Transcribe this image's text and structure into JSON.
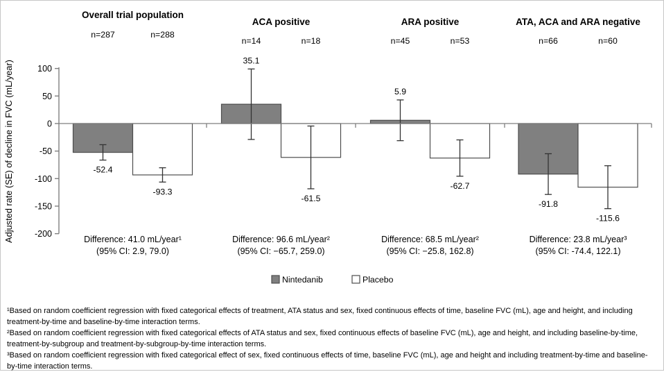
{
  "chart_data": {
    "type": "bar",
    "title": "",
    "xlabel": "",
    "ylabel": "Adjusted rate (SE) of decline in FVC (mL/year)",
    "ylim": [
      -200,
      100
    ],
    "yticks": [
      100,
      50,
      0,
      -50,
      -100,
      -150,
      -200
    ],
    "grid": false,
    "legend_position": "bottom",
    "categories": [
      "Overall trial population",
      "ACA positive",
      "ARA positive",
      "ATA, ACA and ARA negative"
    ],
    "group_n": [
      [
        "n=287",
        "n=288"
      ],
      [
        "n=14",
        "n=18"
      ],
      [
        "n=45",
        "n=53"
      ],
      [
        "n=66",
        "n=60"
      ]
    ],
    "series": [
      {
        "name": "Nintedanib",
        "color": "#808080",
        "values": [
          -52.4,
          35.1,
          5.9,
          -91.8
        ],
        "se": [
          14,
          64,
          37,
          37
        ]
      },
      {
        "name": "Placebo",
        "color": "#ffffff",
        "values": [
          -93.3,
          -61.5,
          -62.7,
          -115.6
        ],
        "se": [
          13,
          57,
          33,
          39
        ]
      }
    ],
    "differences": [
      {
        "line1": "Difference: 41.0 mL/year¹",
        "line2": "(95% CI: 2.9, 79.0)"
      },
      {
        "line1": "Difference: 96.6 mL/year²",
        "line2": "(95% CI: −65.7, 259.0)"
      },
      {
        "line1": "Difference: 68.5 mL/year²",
        "line2": "(95% CI: −25.8, 162.8)"
      },
      {
        "line1": "Difference: 23.8 mL/year³",
        "line2": "(95% CI: -74.4, 122.1)"
      }
    ],
    "legend": [
      "Nintedanib",
      "Placebo"
    ]
  },
  "footnotes": [
    "¹Based on random coefficient regression with fixed categorical effects of treatment, ATA status and sex, fixed continuous effects of time, baseline FVC (mL), age and height, and including treatment-by-time and baseline-by-time interaction terms.",
    "²Based on random coefficient regression with fixed categorical effects of ATA status and sex, fixed continuous effects of baseline FVC (mL), age and height, and including baseline-by-time, treatment-by-subgroup and treatment-by-subgroup-by-time interaction terms.",
    "³Based on random coefficient regression with fixed categorical effect of sex, fixed continuous effects of time, baseline FVC (mL), age and height and including treatment-by-time and baseline-by-time interaction terms."
  ],
  "colors": {
    "bar_stroke": "#4d4d4d",
    "axis": "#7f7f7f",
    "error_bar": "#333333",
    "text": "#000000",
    "frame_border": "#c6c6c6"
  }
}
